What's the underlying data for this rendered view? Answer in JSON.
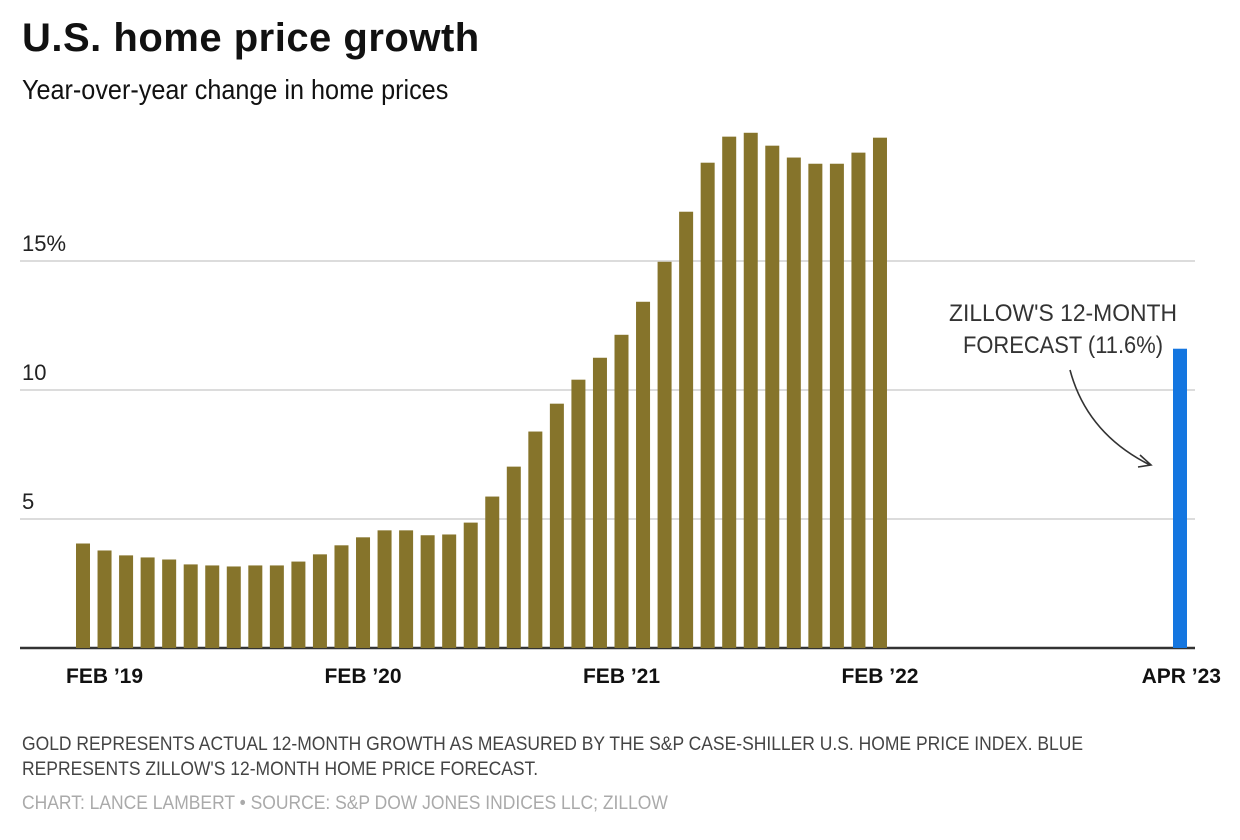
{
  "title": "U.S. home price growth",
  "subtitle": "Year-over-year change in home prices",
  "note": "GOLD REPRESENTS ACTUAL 12-MONTH GROWTH AS MEASURED BY THE S&P CASE-SHILLER U.S. HOME PRICE INDEX. BLUE REPRESENTS ZILLOW'S 12-MONTH HOME PRICE FORECAST.",
  "credit": "CHART: LANCE LAMBERT • SOURCE: S&P DOW JONES INDICES LLC; ZILLOW",
  "annotation": {
    "line1": "ZILLOW'S 12-MONTH",
    "line2": "FORECAST (11.6%)"
  },
  "colors": {
    "actual": "#86742B",
    "forecast": "#1476E0",
    "grid": "#d0d0d0",
    "axis": "#333333"
  },
  "chart_data": {
    "type": "bar",
    "title": "U.S. home price growth",
    "subtitle": "Year-over-year change in home prices",
    "ylim": [
      0,
      20
    ],
    "yticks": [
      {
        "value": 5,
        "label": "5"
      },
      {
        "value": 10,
        "label": "10"
      },
      {
        "value": 15,
        "label": "15%"
      }
    ],
    "grid": true,
    "xtick_labels": [
      {
        "category": "2019-02",
        "label": "FEB ’19"
      },
      {
        "category": "2020-02",
        "label": "FEB ’20"
      },
      {
        "category": "2021-02",
        "label": "FEB ’21"
      },
      {
        "category": "2022-02",
        "label": "FEB ’22"
      },
      {
        "category": "2023-04",
        "label": "APR ’23"
      }
    ],
    "series": [
      {
        "kind": "actual",
        "categories": [
          "2019-01",
          "2019-02",
          "2019-03",
          "2019-04",
          "2019-05",
          "2019-06",
          "2019-07",
          "2019-08",
          "2019-09",
          "2019-10",
          "2019-11",
          "2019-12",
          "2020-01",
          "2020-02",
          "2020-03",
          "2020-04",
          "2020-05",
          "2020-06",
          "2020-07",
          "2020-08",
          "2020-09",
          "2020-10",
          "2020-11",
          "2020-12",
          "2021-01",
          "2021-02",
          "2021-03",
          "2021-04",
          "2021-05",
          "2021-06",
          "2021-07",
          "2021-08",
          "2021-09",
          "2021-10",
          "2021-11",
          "2021-12",
          "2022-01",
          "2022-02"
        ],
        "values": [
          4.05,
          3.78,
          3.59,
          3.51,
          3.43,
          3.24,
          3.2,
          3.16,
          3.2,
          3.2,
          3.35,
          3.63,
          3.98,
          4.29,
          4.56,
          4.56,
          4.37,
          4.4,
          4.86,
          5.87,
          7.03,
          8.39,
          9.47,
          10.4,
          11.25,
          12.14,
          13.42,
          14.97,
          16.91,
          18.81,
          19.82,
          19.97,
          19.47,
          19.01,
          18.77,
          18.77,
          19.2,
          19.78
        ]
      },
      {
        "kind": "forecast",
        "categories": [
          "2023-04"
        ],
        "values": [
          11.6
        ]
      }
    ]
  }
}
